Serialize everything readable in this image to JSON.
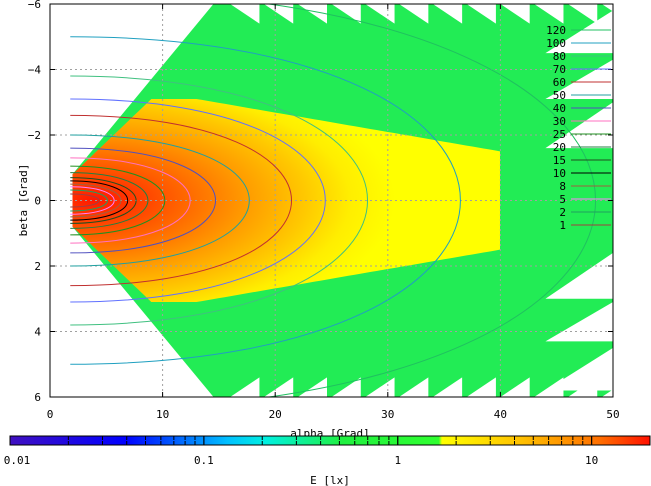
{
  "chart_data": {
    "type": "heatmap",
    "xlabel": "alpha [Grad]",
    "ylabel": "beta [Grad]",
    "colorbar_label": "E [lx]",
    "xlim": [
      0,
      50
    ],
    "ylim": [
      -6,
      6
    ],
    "y_axis_inverted": true,
    "grid": true,
    "x_ticks": [
      "0",
      "10",
      "20",
      "30",
      "40",
      "50"
    ],
    "y_ticks": [
      "-6",
      "-4",
      "-2",
      "0",
      "2",
      "4",
      "6"
    ],
    "colorbar_scale": "log",
    "colorbar_range": [
      0.01,
      20
    ],
    "colorbar_ticks": [
      "0.01",
      "0.1",
      "1",
      "10"
    ],
    "colorbar_colors": [
      "#4010c0",
      "#0000ff",
      "#00e0ff",
      "#20f040",
      "#ffff00",
      "#ff8000",
      "#ff0000"
    ],
    "contour_levels": [
      "120",
      "100",
      "80",
      "70",
      "60",
      "50",
      "40",
      "30",
      "25",
      "20",
      "15",
      "10",
      "8",
      "5",
      "2",
      "1"
    ],
    "contour_colors": [
      "#20c060",
      "#20a0c0",
      "#40c080",
      "#6070ff",
      "#c03030",
      "#20a0a0",
      "#5050c0",
      "#ff70c0",
      "#209020",
      "#208040",
      "#205020",
      "#000000",
      "#a06040",
      "#ff80ff",
      "#20a060",
      "#a04040"
    ],
    "legend_position": "top-right",
    "peak": {
      "alpha": 4,
      "beta": 0
    },
    "illuminated_region": {
      "alpha_start": 2,
      "alpha_end": 50,
      "beta_half_width_start": 0.8,
      "beta_half_width_end": 6
    }
  }
}
